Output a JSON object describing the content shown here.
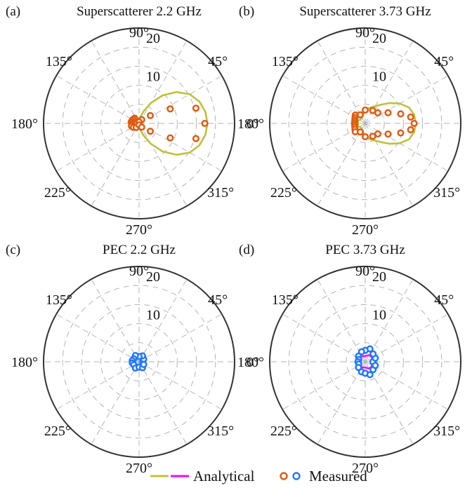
{
  "figure": {
    "legend": {
      "analytical_label": "Analytical",
      "measured_label": "Measured",
      "colors": {
        "analytical_superscatterer": "#c0c03a",
        "analytical_pec": "#ff00ff",
        "measured_superscatterer": "#e05a10",
        "measured_pec": "#1f77ff"
      }
    }
  },
  "chart_data": [
    {
      "type": "polar",
      "label": "(a)",
      "title": "Superscatterer  2.2 GHz",
      "rmax": 25,
      "radial_ticks": [
        20,
        10
      ],
      "angle_ticks": [
        "0°",
        "45°",
        "90°",
        "135°",
        "180°",
        "225°",
        "270°",
        "315°"
      ],
      "grid": true,
      "series": [
        {
          "kind": "analytical",
          "color": "#c0c03a",
          "points": [
            [
              0,
              17.9
            ],
            [
              10,
              17.6
            ],
            [
              20,
              16.8
            ],
            [
              30,
              15.3
            ],
            [
              40,
              12.8
            ],
            [
              50,
              9.6
            ],
            [
              60,
              6.2
            ],
            [
              70,
              3.3
            ],
            [
              80,
              1.6
            ],
            [
              90,
              1.2
            ],
            [
              100,
              1.3
            ],
            [
              110,
              1.5
            ],
            [
              120,
              1.8
            ],
            [
              130,
              2.0
            ],
            [
              140,
              2.1
            ],
            [
              150,
              2.2
            ],
            [
              160,
              2.4
            ],
            [
              170,
              2.6
            ],
            [
              180,
              2.6
            ],
            [
              190,
              2.6
            ],
            [
              200,
              2.4
            ],
            [
              210,
              2.2
            ],
            [
              220,
              2.1
            ],
            [
              230,
              2.0
            ],
            [
              240,
              1.8
            ],
            [
              250,
              1.5
            ],
            [
              260,
              1.3
            ],
            [
              270,
              1.2
            ],
            [
              280,
              1.6
            ],
            [
              290,
              3.3
            ],
            [
              300,
              6.2
            ],
            [
              310,
              9.6
            ],
            [
              320,
              12.8
            ],
            [
              330,
              15.3
            ],
            [
              340,
              16.8
            ],
            [
              350,
              17.6
            ],
            [
              360,
              17.9
            ]
          ]
        },
        {
          "kind": "measured",
          "color": "#e05a10",
          "points": [
            [
              0,
              17.2
            ],
            [
              15,
              15.4
            ],
            [
              25,
              9.0
            ],
            [
              35,
              3.6
            ],
            [
              55,
              1.2
            ],
            [
              90,
              0.4
            ],
            [
              130,
              1.8
            ],
            [
              145,
              1.9
            ],
            [
              160,
              2.0
            ],
            [
              170,
              2.1
            ],
            [
              180,
              1.9
            ],
            [
              190,
              2.0
            ],
            [
              200,
              2.1
            ],
            [
              215,
              1.8
            ],
            [
              235,
              1.3
            ],
            [
              270,
              0.4
            ],
            [
              305,
              1.2
            ],
            [
              325,
              3.6
            ],
            [
              335,
              9.0
            ],
            [
              345,
              15.4
            ]
          ]
        }
      ]
    },
    {
      "type": "polar",
      "label": "(b)",
      "title": "Superscatterer  3.73 GHz",
      "rmax": 25,
      "radial_ticks": [
        20,
        10
      ],
      "angle_ticks": [
        "0°",
        "45°",
        "90°",
        "135°",
        "180°",
        "225°",
        "270°",
        "315°"
      ],
      "grid": true,
      "series": [
        {
          "kind": "analytical",
          "color": "#c0c03a",
          "points": [
            [
              0,
              13.2
            ],
            [
              10,
              13.0
            ],
            [
              20,
              12.2
            ],
            [
              30,
              10.4
            ],
            [
              40,
              8.3
            ],
            [
              50,
              6.4
            ],
            [
              60,
              5.2
            ],
            [
              70,
              4.5
            ],
            [
              80,
              3.9
            ],
            [
              90,
              3.3
            ],
            [
              100,
              2.6
            ],
            [
              110,
              2.0
            ],
            [
              120,
              1.8
            ],
            [
              130,
              1.6
            ],
            [
              140,
              1.6
            ],
            [
              150,
              1.8
            ],
            [
              160,
              2.0
            ],
            [
              170,
              2.0
            ],
            [
              180,
              1.8
            ],
            [
              190,
              2.0
            ],
            [
              200,
              2.0
            ],
            [
              210,
              1.8
            ],
            [
              220,
              1.6
            ],
            [
              230,
              1.6
            ],
            [
              240,
              1.8
            ],
            [
              250,
              2.0
            ],
            [
              260,
              2.6
            ],
            [
              270,
              3.3
            ],
            [
              280,
              3.9
            ],
            [
              290,
              4.5
            ],
            [
              300,
              5.2
            ],
            [
              310,
              6.4
            ],
            [
              320,
              8.3
            ],
            [
              330,
              10.4
            ],
            [
              340,
              12.2
            ],
            [
              350,
              13.0
            ],
            [
              360,
              13.2
            ]
          ]
        },
        {
          "kind": "measured",
          "color": "#e05a10",
          "points": [
            [
              0,
              12.8
            ],
            [
              8,
              12.0
            ],
            [
              15,
              9.6
            ],
            [
              25,
              6.6
            ],
            [
              40,
              4.3
            ],
            [
              60,
              3.9
            ],
            [
              90,
              3.5
            ],
            [
              120,
              2.6
            ],
            [
              140,
              3.4
            ],
            [
              150,
              3.1
            ],
            [
              160,
              2.9
            ],
            [
              170,
              2.8
            ],
            [
              180,
              2.8
            ],
            [
              190,
              2.8
            ],
            [
              200,
              2.9
            ],
            [
              210,
              3.1
            ],
            [
              220,
              3.4
            ],
            [
              240,
              2.6
            ],
            [
              270,
              3.5
            ],
            [
              300,
              3.9
            ],
            [
              320,
              4.3
            ],
            [
              335,
              6.6
            ],
            [
              345,
              9.6
            ],
            [
              352,
              12.0
            ]
          ]
        }
      ]
    },
    {
      "type": "polar",
      "label": "(c)",
      "title": "PEC 2.2 GHz",
      "rmax": 25,
      "radial_ticks": [
        20,
        10
      ],
      "angle_ticks": [
        "0°",
        "45°",
        "90°",
        "135°",
        "180°",
        "225°",
        "270°",
        "315°"
      ],
      "grid": true,
      "series": [
        {
          "kind": "analytical",
          "color": "#ff00ff",
          "points": [
            [
              0,
              1.0
            ],
            [
              20,
              1.0
            ],
            [
              40,
              1.2
            ],
            [
              60,
              1.4
            ],
            [
              80,
              1.2
            ],
            [
              100,
              1.1
            ],
            [
              120,
              1.2
            ],
            [
              140,
              1.4
            ],
            [
              160,
              1.3
            ],
            [
              180,
              1.2
            ],
            [
              200,
              1.3
            ],
            [
              220,
              1.4
            ],
            [
              240,
              1.2
            ],
            [
              260,
              1.1
            ],
            [
              280,
              1.2
            ],
            [
              300,
              1.4
            ],
            [
              320,
              1.2
            ],
            [
              340,
              1.0
            ],
            [
              360,
              1.0
            ]
          ]
        },
        {
          "kind": "measured",
          "color": "#1f77ff",
          "points": [
            [
              0,
              1.0
            ],
            [
              30,
              1.4
            ],
            [
              60,
              1.8
            ],
            [
              90,
              1.4
            ],
            [
              120,
              1.9
            ],
            [
              150,
              1.6
            ],
            [
              170,
              1.8
            ],
            [
              190,
              1.8
            ],
            [
              210,
              1.6
            ],
            [
              240,
              1.9
            ],
            [
              270,
              1.4
            ],
            [
              300,
              1.8
            ],
            [
              330,
              1.4
            ]
          ]
        }
      ]
    },
    {
      "type": "polar",
      "label": "(d)",
      "title": "PEC 3.73 GHz",
      "rmax": 25,
      "radial_ticks": [
        20,
        10
      ],
      "angle_ticks": [
        "0°",
        "45°",
        "90°",
        "135°",
        "180°",
        "225°",
        "270°",
        "315°"
      ],
      "grid": true,
      "series": [
        {
          "kind": "analytical",
          "color": "#ff00ff",
          "points": [
            [
              0,
              2.1
            ],
            [
              20,
              2.0
            ],
            [
              40,
              2.1
            ],
            [
              60,
              2.0
            ],
            [
              80,
              1.6
            ],
            [
              100,
              1.5
            ],
            [
              120,
              1.7
            ],
            [
              140,
              2.0
            ],
            [
              160,
              1.8
            ],
            [
              180,
              1.7
            ],
            [
              200,
              1.8
            ],
            [
              220,
              2.0
            ],
            [
              240,
              1.7
            ],
            [
              260,
              1.5
            ],
            [
              280,
              1.6
            ],
            [
              300,
              2.0
            ],
            [
              320,
              2.1
            ],
            [
              340,
              2.0
            ],
            [
              360,
              2.1
            ]
          ]
        },
        {
          "kind": "measured",
          "color": "#1f77ff",
          "points": [
            [
              0,
              2.0
            ],
            [
              20,
              2.8
            ],
            [
              45,
              2.9
            ],
            [
              70,
              3.6
            ],
            [
              90,
              3.0
            ],
            [
              110,
              2.8
            ],
            [
              140,
              2.3
            ],
            [
              160,
              1.8
            ],
            [
              180,
              1.9
            ],
            [
              200,
              1.8
            ],
            [
              220,
              2.3
            ],
            [
              250,
              2.8
            ],
            [
              270,
              3.0
            ],
            [
              290,
              3.6
            ],
            [
              315,
              2.9
            ],
            [
              340,
              2.8
            ]
          ]
        }
      ]
    }
  ]
}
